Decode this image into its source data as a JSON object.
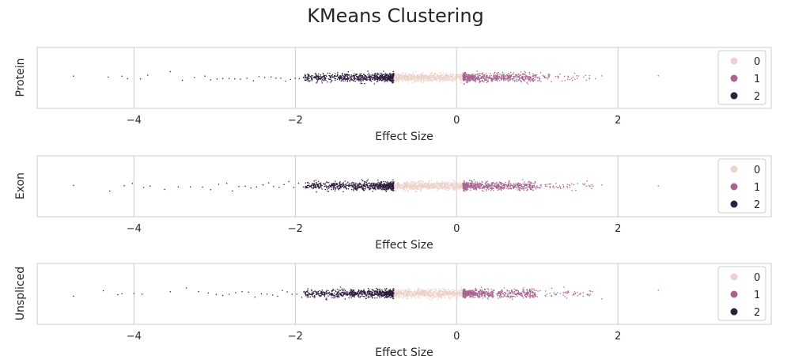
{
  "chart_data": {
    "type": "scatter",
    "title": "KMeans Clustering",
    "xlabel": "Effect Size",
    "xlim": [
      -5.2,
      3.9
    ],
    "xticks": [
      -4,
      -2,
      0,
      2
    ],
    "xtick_labels": [
      "−4",
      "−2",
      "0",
      "2"
    ],
    "grid": true,
    "legend_placement": "upper right",
    "cluster_colors": {
      "0": "#ebd1c7",
      "1": "#a8648f",
      "2": "#2d1e3e"
    },
    "cluster_ranges": {
      "2": [
        -4.8,
        -0.78
      ],
      "0": [
        -0.78,
        0.08
      ],
      "1": [
        0.08,
        2.5
      ]
    },
    "panels": [
      {
        "ylabel": "Protein",
        "legend": [
          {
            "label": "0",
            "cluster": "0"
          },
          {
            "label": "1",
            "cluster": "1"
          },
          {
            "label": "2",
            "cluster": "2"
          }
        ],
        "points": [
          -4.75,
          -4.32,
          -4.15,
          -4.08,
          -3.92,
          -3.83,
          -3.55,
          -3.4,
          -3.25,
          -3.12,
          -3.05,
          -2.97,
          -2.9,
          -2.82,
          -2.75,
          -2.68,
          -2.6,
          -2.52,
          -2.45,
          -2.38,
          -2.3,
          -2.24,
          -2.18,
          -2.12,
          -2.06,
          -2.0,
          -1.95,
          -1.9,
          1.72,
          1.8,
          2.5
        ]
      },
      {
        "ylabel": "Exon",
        "legend": [
          {
            "label": "0",
            "cluster": "0"
          },
          {
            "label": "1",
            "cluster": "1"
          },
          {
            "label": "2",
            "cluster": "2"
          }
        ],
        "points": [
          -4.75,
          -4.3,
          -4.12,
          -4.02,
          -3.88,
          -3.8,
          -3.62,
          -3.45,
          -3.3,
          -3.15,
          -3.05,
          -2.95,
          -2.85,
          -2.78,
          -2.7,
          -2.62,
          -2.55,
          -2.48,
          -2.4,
          -2.33,
          -2.27,
          -2.2,
          -2.14,
          -2.08,
          -2.02,
          -1.96,
          -1.9,
          1.68,
          1.8,
          2.5
        ]
      },
      {
        "ylabel": "Unspliced",
        "legend": [
          {
            "label": "0",
            "cluster": "0"
          },
          {
            "label": "1",
            "cluster": "1"
          },
          {
            "label": "2",
            "cluster": "2"
          }
        ],
        "points": [
          -4.75,
          -4.38,
          -4.2,
          -4.15,
          -4.0,
          -3.9,
          -3.55,
          -3.35,
          -3.2,
          -3.08,
          -2.98,
          -2.9,
          -2.82,
          -2.74,
          -2.66,
          -2.58,
          -2.5,
          -2.42,
          -2.35,
          -2.28,
          -2.22,
          -2.16,
          -2.1,
          -2.04,
          -1.98,
          -1.92,
          1.65,
          1.8,
          2.5
        ]
      }
    ]
  }
}
